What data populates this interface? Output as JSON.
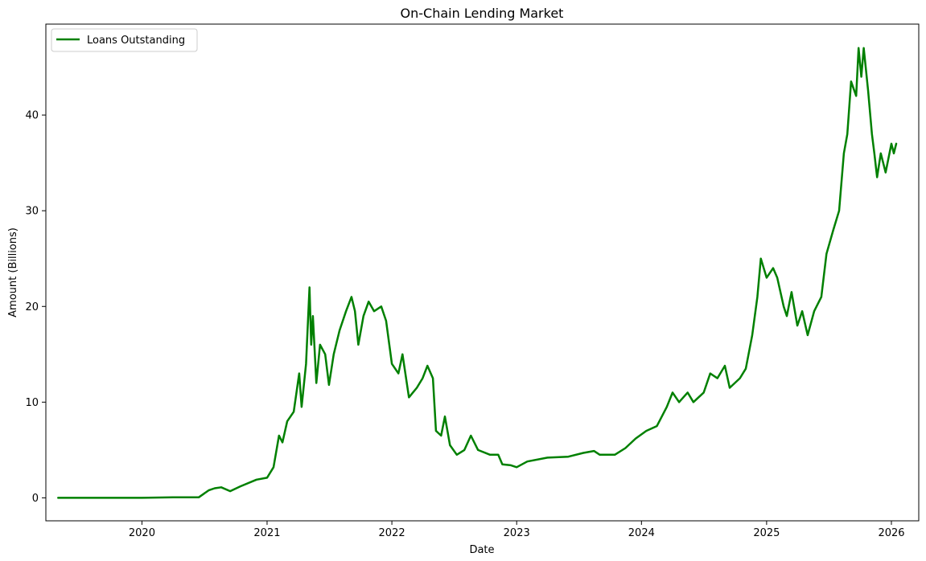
{
  "chart_data": {
    "type": "line",
    "title": "On-Chain Lending Market",
    "xlabel": "Date",
    "ylabel": "Amount (Billions)",
    "legend_position": "top-left",
    "grid": false,
    "x_tick_labels": [
      "2020",
      "2021",
      "2022",
      "2023",
      "2024",
      "2025",
      "2026"
    ],
    "y_tick_labels": [
      "0",
      "10",
      "20",
      "30",
      "40"
    ],
    "x_ticks": [
      "2020-01-01",
      "2021-01-01",
      "2022-01-01",
      "2023-01-01",
      "2024-01-01",
      "2025-01-01",
      "2026-01-01"
    ],
    "y_ticks": [
      0,
      10,
      20,
      30,
      40
    ],
    "xlim": [
      "2019-03-26",
      "2026-03-22"
    ],
    "ylim": [
      -2.4,
      49.5
    ],
    "series": [
      {
        "name": "Loans Outstanding",
        "color": "#008000",
        "points": [
          [
            "2019-05-01",
            0.0
          ],
          [
            "2019-09-01",
            0.0
          ],
          [
            "2020-01-01",
            0.0
          ],
          [
            "2020-04-01",
            0.05
          ],
          [
            "2020-06-15",
            0.05
          ],
          [
            "2020-07-15",
            0.8
          ],
          [
            "2020-08-01",
            1.0
          ],
          [
            "2020-08-20",
            1.1
          ],
          [
            "2020-09-15",
            0.7
          ],
          [
            "2020-10-15",
            1.2
          ],
          [
            "2020-12-01",
            1.9
          ],
          [
            "2021-01-01",
            2.1
          ],
          [
            "2021-01-20",
            3.2
          ],
          [
            "2021-02-05",
            6.5
          ],
          [
            "2021-02-15",
            5.8
          ],
          [
            "2021-03-01",
            8.0
          ],
          [
            "2021-03-20",
            9.0
          ],
          [
            "2021-04-05",
            13.0
          ],
          [
            "2021-04-12",
            9.5
          ],
          [
            "2021-04-25",
            14.0
          ],
          [
            "2021-05-05",
            22.0
          ],
          [
            "2021-05-10",
            16.0
          ],
          [
            "2021-05-15",
            19.0
          ],
          [
            "2021-05-25",
            12.0
          ],
          [
            "2021-06-05",
            16.0
          ],
          [
            "2021-06-20",
            15.0
          ],
          [
            "2021-07-01",
            11.8
          ],
          [
            "2021-07-15",
            15.0
          ],
          [
            "2021-08-01",
            17.5
          ],
          [
            "2021-08-20",
            19.5
          ],
          [
            "2021-09-05",
            21.0
          ],
          [
            "2021-09-15",
            19.5
          ],
          [
            "2021-09-25",
            16.0
          ],
          [
            "2021-10-10",
            19.0
          ],
          [
            "2021-10-25",
            20.5
          ],
          [
            "2021-11-10",
            19.5
          ],
          [
            "2021-12-01",
            20.0
          ],
          [
            "2021-12-15",
            18.5
          ],
          [
            "2022-01-01",
            14.0
          ],
          [
            "2022-01-20",
            13.0
          ],
          [
            "2022-02-01",
            15.0
          ],
          [
            "2022-02-20",
            10.5
          ],
          [
            "2022-03-15",
            11.5
          ],
          [
            "2022-04-01",
            12.5
          ],
          [
            "2022-04-15",
            13.8
          ],
          [
            "2022-05-01",
            12.5
          ],
          [
            "2022-05-10",
            7.0
          ],
          [
            "2022-05-25",
            6.5
          ],
          [
            "2022-06-05",
            8.5
          ],
          [
            "2022-06-20",
            5.5
          ],
          [
            "2022-07-10",
            4.5
          ],
          [
            "2022-08-01",
            5.0
          ],
          [
            "2022-08-20",
            6.5
          ],
          [
            "2022-09-10",
            5.0
          ],
          [
            "2022-10-15",
            4.5
          ],
          [
            "2022-11-08",
            4.5
          ],
          [
            "2022-11-20",
            3.5
          ],
          [
            "2022-12-15",
            3.4
          ],
          [
            "2023-01-01",
            3.2
          ],
          [
            "2023-02-01",
            3.8
          ],
          [
            "2023-04-01",
            4.2
          ],
          [
            "2023-06-01",
            4.3
          ],
          [
            "2023-07-15",
            4.7
          ],
          [
            "2023-08-15",
            4.9
          ],
          [
            "2023-09-01",
            4.5
          ],
          [
            "2023-10-15",
            4.5
          ],
          [
            "2023-11-15",
            5.2
          ],
          [
            "2023-12-15",
            6.2
          ],
          [
            "2024-01-15",
            7.0
          ],
          [
            "2024-02-15",
            7.5
          ],
          [
            "2024-03-15",
            9.5
          ],
          [
            "2024-04-01",
            11.0
          ],
          [
            "2024-04-20",
            10.0
          ],
          [
            "2024-05-15",
            11.0
          ],
          [
            "2024-06-01",
            10.0
          ],
          [
            "2024-07-01",
            11.0
          ],
          [
            "2024-07-20",
            13.0
          ],
          [
            "2024-08-10",
            12.5
          ],
          [
            "2024-09-01",
            13.8
          ],
          [
            "2024-09-15",
            11.5
          ],
          [
            "2024-10-15",
            12.5
          ],
          [
            "2024-11-01",
            13.5
          ],
          [
            "2024-11-20",
            17.0
          ],
          [
            "2024-12-05",
            21.0
          ],
          [
            "2024-12-15",
            25.0
          ],
          [
            "2025-01-01",
            23.0
          ],
          [
            "2025-01-20",
            24.0
          ],
          [
            "2025-02-01",
            23.0
          ],
          [
            "2025-02-20",
            20.0
          ],
          [
            "2025-03-01",
            19.0
          ],
          [
            "2025-03-15",
            21.5
          ],
          [
            "2025-04-01",
            18.0
          ],
          [
            "2025-04-15",
            19.5
          ],
          [
            "2025-05-01",
            17.0
          ],
          [
            "2025-05-20",
            19.5
          ],
          [
            "2025-06-10",
            21.0
          ],
          [
            "2025-06-25",
            25.5
          ],
          [
            "2025-07-15",
            28.0
          ],
          [
            "2025-08-01",
            30.0
          ],
          [
            "2025-08-15",
            36.0
          ],
          [
            "2025-08-25",
            38.0
          ],
          [
            "2025-09-05",
            43.5
          ],
          [
            "2025-09-20",
            42.0
          ],
          [
            "2025-09-27",
            47.0
          ],
          [
            "2025-10-05",
            44.0
          ],
          [
            "2025-10-12",
            47.0
          ],
          [
            "2025-10-25",
            42.5
          ],
          [
            "2025-11-05",
            38.0
          ],
          [
            "2025-11-12",
            36.0
          ],
          [
            "2025-11-20",
            33.5
          ],
          [
            "2025-12-01",
            36.0
          ],
          [
            "2025-12-15",
            34.0
          ],
          [
            "2026-01-01",
            37.0
          ],
          [
            "2026-01-08",
            36.0
          ],
          [
            "2026-01-15",
            37.0
          ]
        ]
      }
    ]
  }
}
